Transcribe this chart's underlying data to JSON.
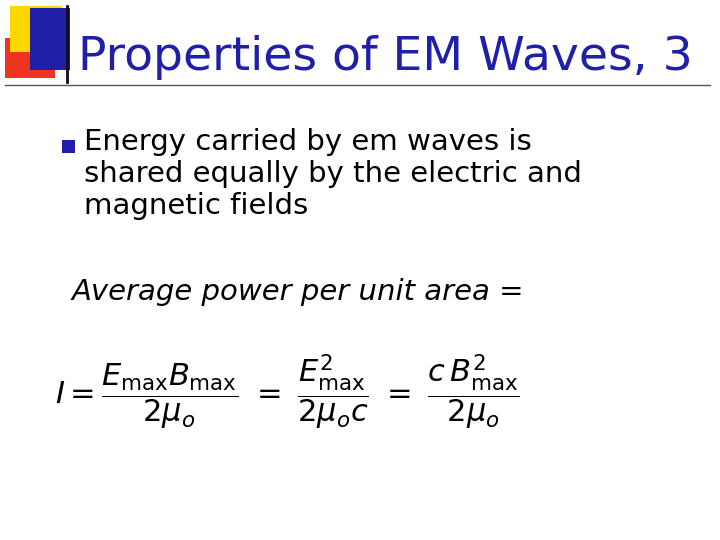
{
  "background_color": "#ffffff",
  "title": "Properties of EM Waves, 3",
  "title_color": "#1F1FA8",
  "title_fontsize": 34,
  "bullet_text_lines": [
    "Energy carried by em waves is",
    "shared equally by the electric and",
    "magnetic fields"
  ],
  "bullet_color": "#000000",
  "bullet_fontsize": 21,
  "bullet_marker_color": "#1F1FA8",
  "avg_power_text": "Average power per unit area =",
  "avg_power_fontsize": 21,
  "formula_fontsize": 22,
  "formula_color": "#000000",
  "separator_color": "#555555",
  "logo_yellow": "#FFD700",
  "logo_red": "#EE3322",
  "logo_blue": "#1F1FA8"
}
